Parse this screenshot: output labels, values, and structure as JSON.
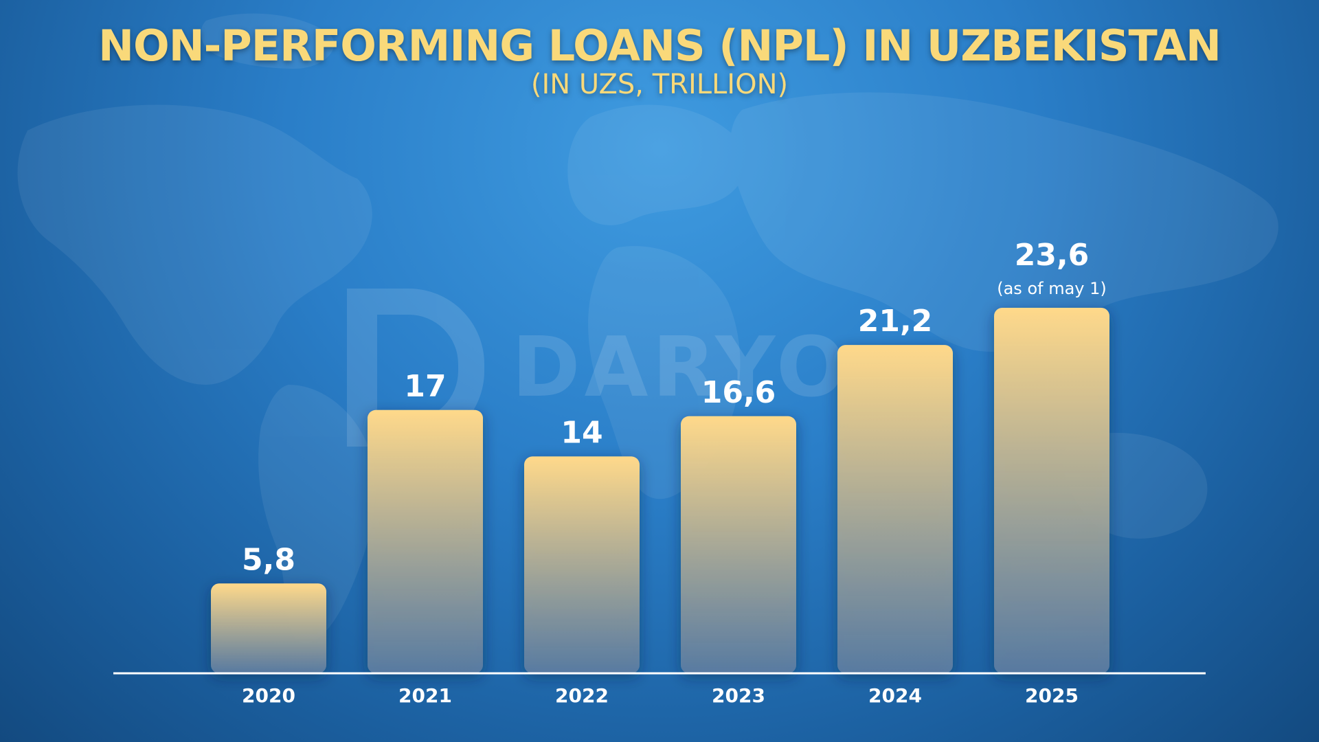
{
  "title": "NON-PERFORMING LOANS (NPL) IN UZBEKISTAN",
  "subtitle": "(IN UZS, TRILLION)",
  "watermark": "DARYO",
  "colors": {
    "bar_top": "#ffd98a",
    "bar_bottom": "#5d7ea3",
    "label": "#ffffff",
    "title": "#f9d97a",
    "axis": "#ffffff"
  },
  "chart_data": {
    "type": "bar",
    "categories": [
      "2020",
      "2021",
      "2022",
      "2023",
      "2024",
      "2025"
    ],
    "values": [
      5.8,
      17,
      14,
      16.6,
      21.2,
      23.6
    ],
    "value_labels": [
      "5,8",
      "17",
      "14",
      "16,6",
      "21,2",
      "23,6"
    ],
    "annotations": [
      "",
      "",
      "",
      "",
      "",
      "(as of may 1)"
    ],
    "title": "NON-PERFORMING LOANS (NPL) IN UZBEKISTAN",
    "subtitle": "(IN UZS, TRILLION)",
    "xlabel": "",
    "ylabel": "",
    "ylim": [
      0,
      23.6
    ],
    "grid": false,
    "legend": "none"
  }
}
